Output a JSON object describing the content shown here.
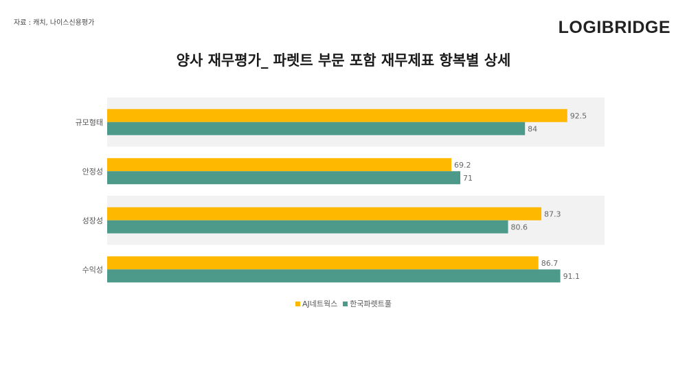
{
  "source": "자료 : 캐치, 나이스신용평가",
  "logo": "LOGIBRIDGE",
  "title": "양사 재무평가_ 파렛트 부문 포함 재무제표 항복별 상세",
  "chart_data": {
    "type": "bar",
    "orientation": "horizontal",
    "categories": [
      "규모형태",
      "안정성",
      "성장성",
      "수익성"
    ],
    "series": [
      {
        "name": "AJ네트웍스",
        "color": "#FFB800",
        "values": [
          92.5,
          69.2,
          87.3,
          86.7
        ]
      },
      {
        "name": "한국파렛트풀",
        "color": "#4E9A8A",
        "values": [
          84,
          71,
          80.6,
          91.1
        ]
      }
    ],
    "xlim": [
      0,
      100
    ],
    "grid": false,
    "legend_position": "bottom",
    "band_color": "#F2F2F2"
  }
}
